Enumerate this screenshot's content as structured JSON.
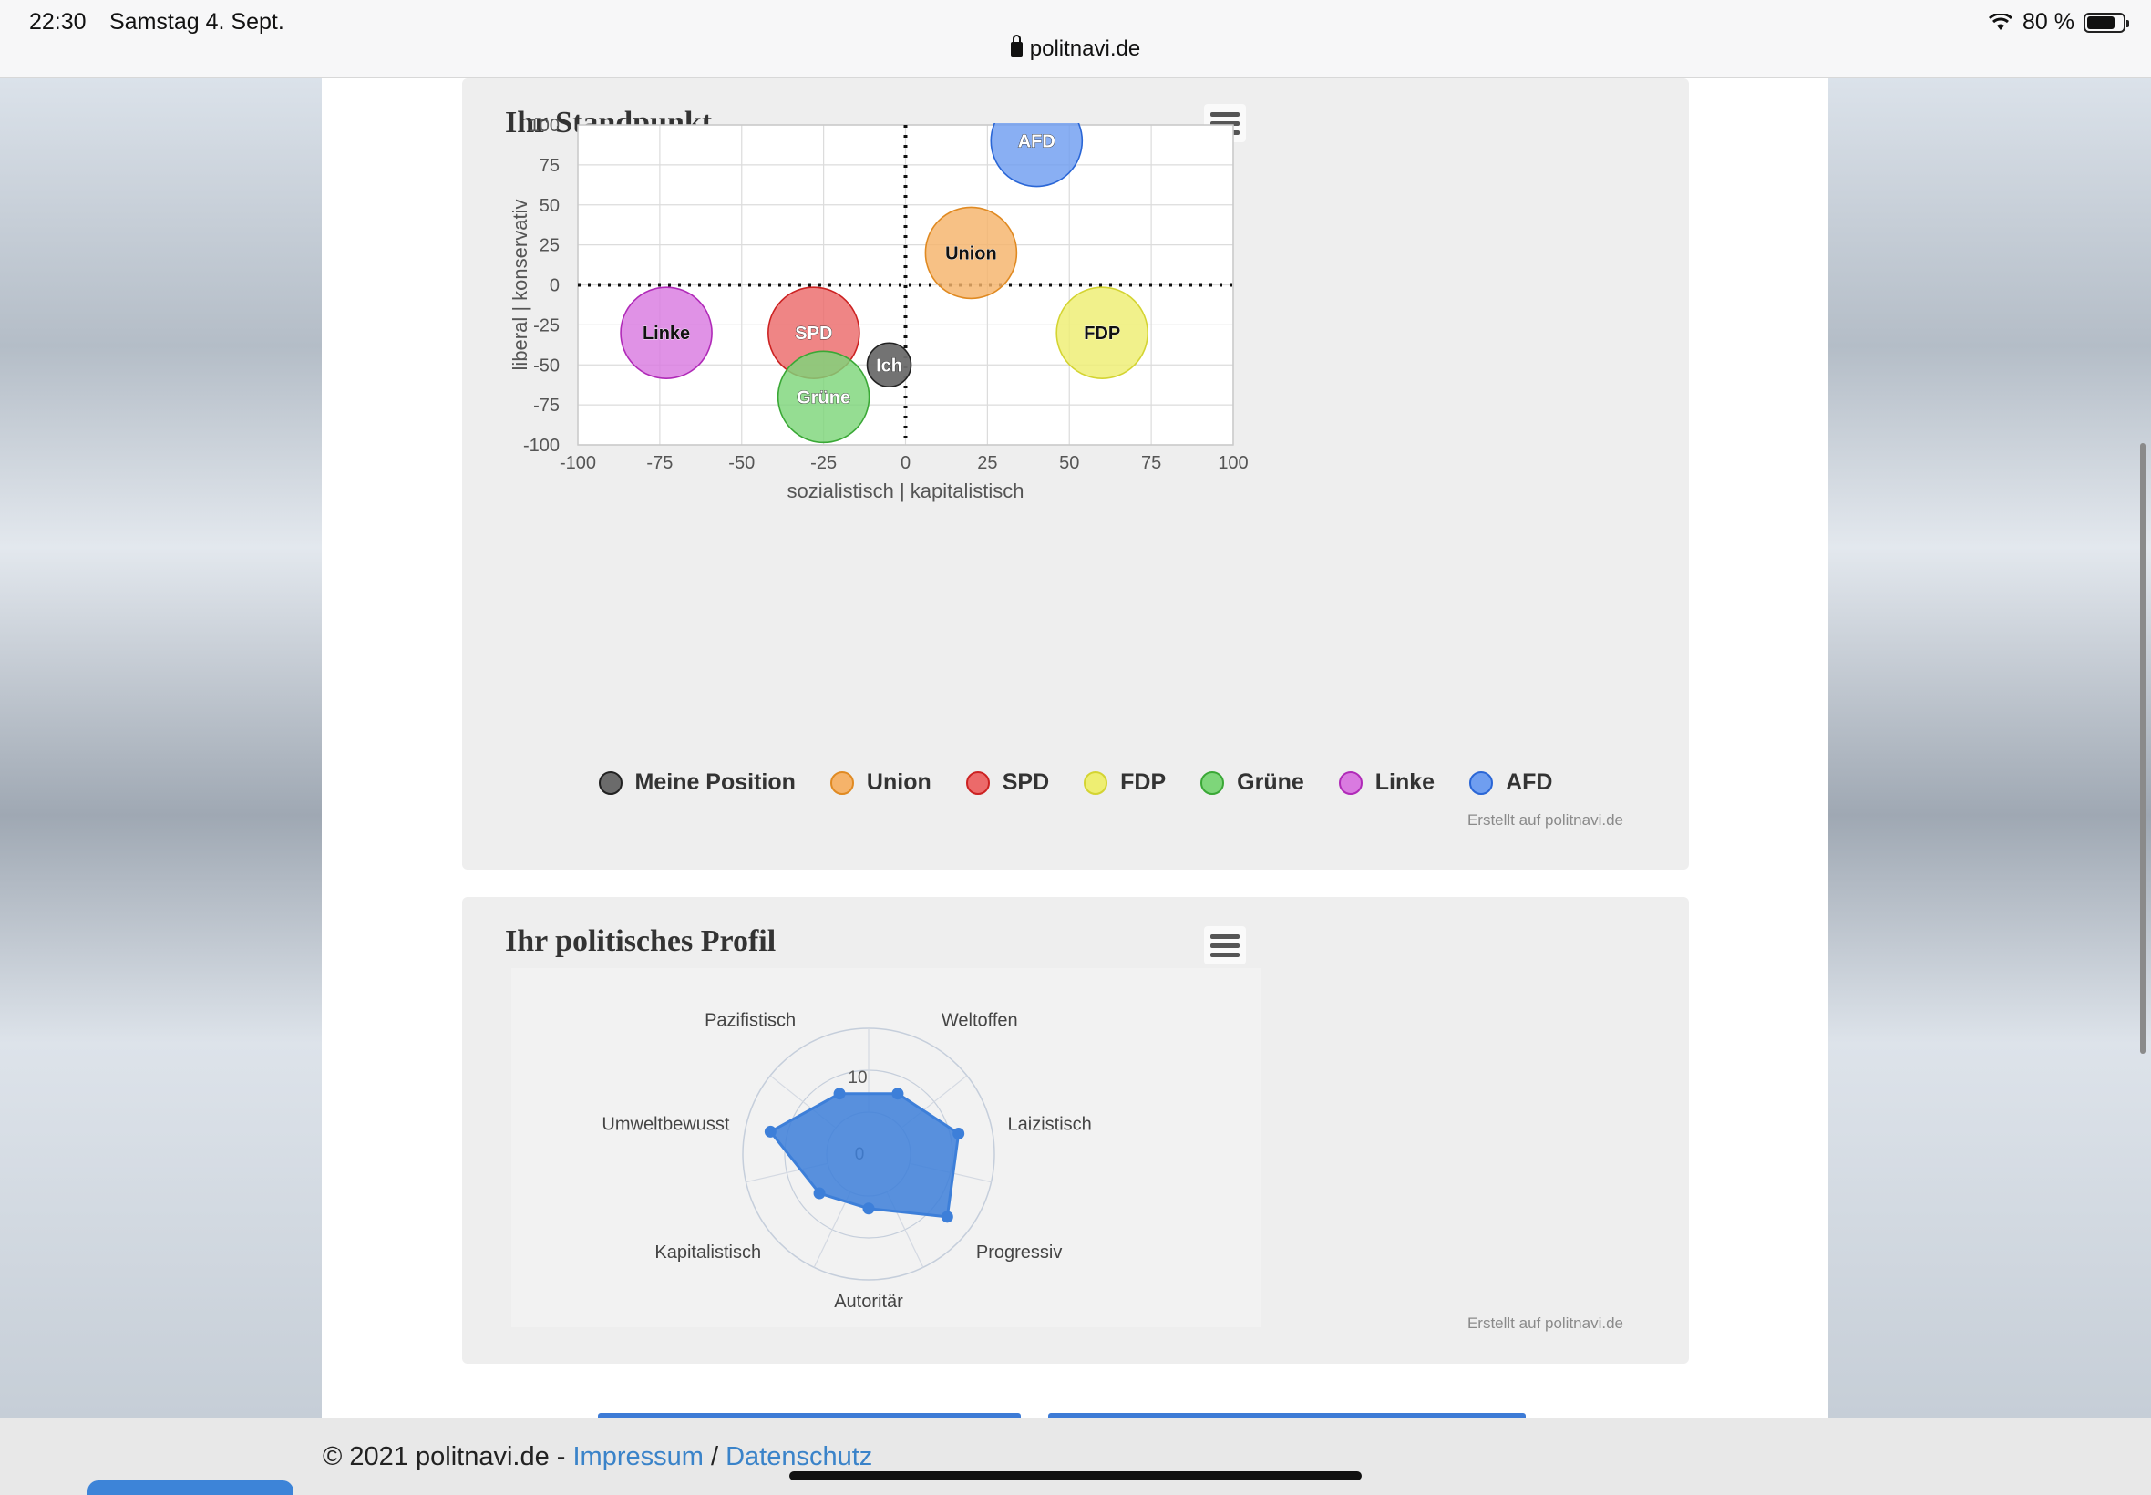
{
  "status": {
    "time": "22:30",
    "date": "Samstag 4. Sept.",
    "battery": "80 %",
    "battery_level": 0.8,
    "url": "politnavi.de"
  },
  "chart1": {
    "title": "Ihr Standpunkt",
    "credit": "Erstellt auf politnavi.de",
    "chart_data": {
      "type": "bubble",
      "xlabel": "sozialistisch | kapitalistisch",
      "ylabel": "liberal | konservativ",
      "xlim": [
        -100,
        100
      ],
      "ylim": [
        -100,
        100
      ],
      "xticks": [
        "-100",
        "-75",
        "-50",
        "-25",
        "0",
        "25",
        "50",
        "75",
        "100"
      ],
      "yticks": [
        "100",
        "75",
        "50",
        "25",
        "0",
        "-25",
        "-50",
        "-75",
        "-100"
      ],
      "grid": true,
      "legend_position": "bottom",
      "series": [
        {
          "name": "Meine Position",
          "label": "Ich",
          "x": -5,
          "y": -50,
          "size": "small",
          "color": "#6b6b6b",
          "stroke": "#222222"
        },
        {
          "name": "Union",
          "label": "Union",
          "x": 20,
          "y": 20,
          "size": "large",
          "color": "#f5b36a",
          "stroke": "#e08a22"
        },
        {
          "name": "SPD",
          "label": "SPD",
          "x": -28,
          "y": -30,
          "size": "large",
          "color": "#ec6a6a",
          "stroke": "#cc2222"
        },
        {
          "name": "FDP",
          "label": "FDP",
          "x": 60,
          "y": -30,
          "size": "large",
          "color": "#eeee72",
          "stroke": "#d4d432"
        },
        {
          "name": "Grüne",
          "label": "Grüne",
          "x": -25,
          "y": -70,
          "size": "large",
          "color": "#7ed67a",
          "stroke": "#3aa836"
        },
        {
          "name": "Linke",
          "label": "Linke",
          "x": -73,
          "y": -30,
          "size": "large",
          "color": "#d97ae0",
          "stroke": "#b02ab8"
        },
        {
          "name": "AFD",
          "label": "AFD",
          "x": 40,
          "y": 90,
          "size": "large",
          "color": "#6f9ef0",
          "stroke": "#2a66d6"
        }
      ]
    }
  },
  "chart2": {
    "title": "Ihr politisches Profil",
    "credit": "Erstellt auf politnavi.de",
    "chart_data": {
      "type": "radar",
      "axes": [
        "Weltoffen",
        "Laizistisch",
        "Progressiv",
        "Autoritär",
        "Kapitalistisch",
        "Umweltbewusst",
        "Pazifistisch"
      ],
      "radial_ticks": [
        "0",
        "10"
      ],
      "series": [
        {
          "values": [
            6,
            12,
            14,
            3,
            5,
            14,
            6
          ],
          "color": "#3d7fd9"
        }
      ]
    }
  },
  "footer": {
    "copyright": "© 2021 politnavi.de - ",
    "impressum": "Impressum",
    "separator": " / ",
    "datenschutz": "Datenschutz"
  }
}
